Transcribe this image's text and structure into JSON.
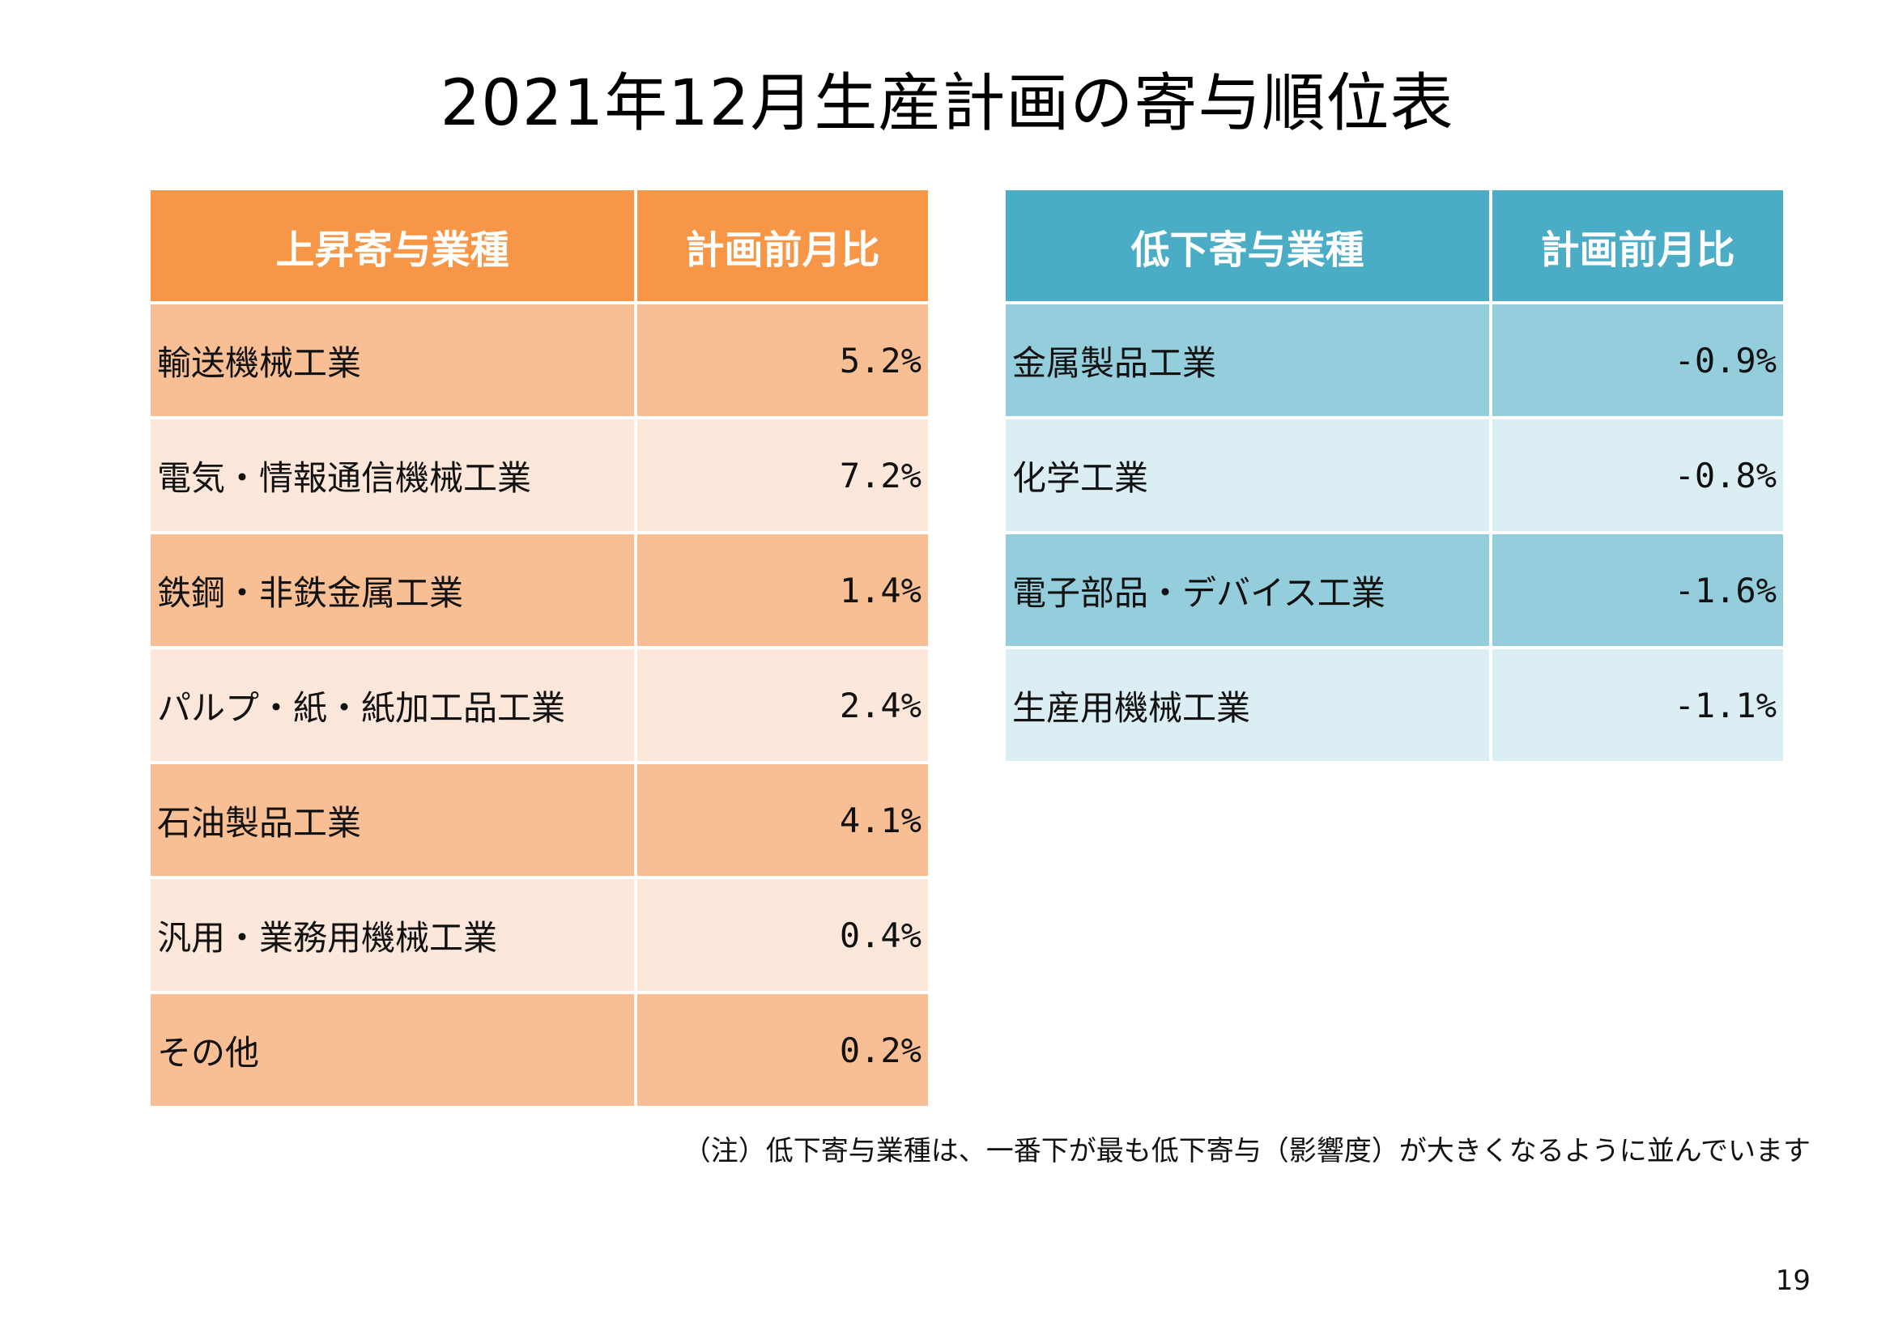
{
  "title": "2021年12月生産計画の寄与順位表",
  "increase_table": {
    "header_industry": "上昇寄与業種",
    "header_ratio": "計画前月比",
    "rows": [
      {
        "industry": "輸送機械工業",
        "ratio": "5.2%"
      },
      {
        "industry": "電気・情報通信機械工業",
        "ratio": "7.2%"
      },
      {
        "industry": "鉄鋼・非鉄金属工業",
        "ratio": "1.4%"
      },
      {
        "industry": "パルプ・紙・紙加工品工業",
        "ratio": "2.4%"
      },
      {
        "industry": "石油製品工業",
        "ratio": "4.1%"
      },
      {
        "industry": "汎用・業務用機械工業",
        "ratio": "0.4%"
      },
      {
        "industry": "その他",
        "ratio": "0.2%"
      }
    ]
  },
  "decrease_table": {
    "header_industry": "低下寄与業種",
    "header_ratio": "計画前月比",
    "rows": [
      {
        "industry": "金属製品工業",
        "ratio": "-0.9%"
      },
      {
        "industry": "化学工業",
        "ratio": "-0.8%"
      },
      {
        "industry": "電子部品・デバイス工業",
        "ratio": "-1.6%"
      },
      {
        "industry": "生産用機械工業",
        "ratio": "-1.1%"
      }
    ]
  },
  "colors": {
    "increase_header": "#f79646",
    "increase_row_dark": "#f8be94",
    "increase_row_light": "#fce7da",
    "decrease_header": "#4bacc6",
    "decrease_row_dark": "#94cedc",
    "decrease_row_light": "#dbeef4"
  },
  "note": "（注）低下寄与業種は、一番下が最も低下寄与（影響度）が大きくなるように並んでいます",
  "page_number": "19"
}
